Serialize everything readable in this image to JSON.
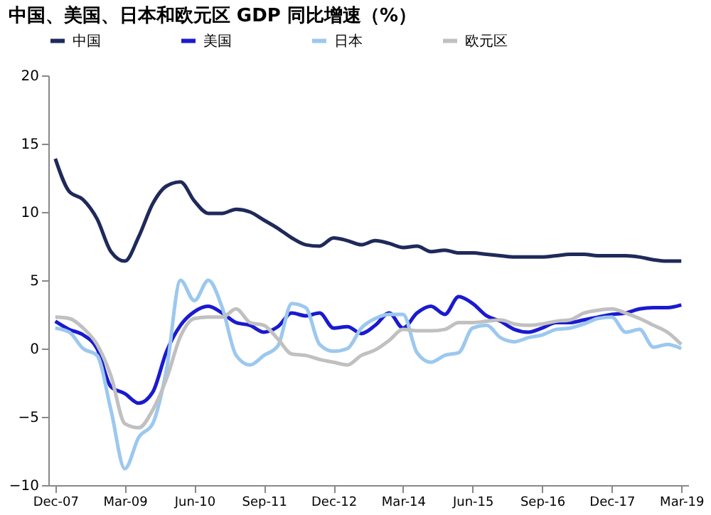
{
  "chart_data": {
    "type": "line",
    "title": "中国、美国、日本和欧元区 GDP 同比增速（%）",
    "categories": [
      "Dec-07",
      null,
      null,
      null,
      null,
      "Mar-09",
      null,
      null,
      null,
      null,
      "Jun-10",
      null,
      null,
      null,
      null,
      "Sep-11",
      null,
      null,
      null,
      null,
      "Dec-12",
      null,
      null,
      null,
      null,
      "Mar-14",
      null,
      null,
      null,
      null,
      "Jun-15",
      null,
      null,
      null,
      null,
      "Sep-16",
      null,
      null,
      null,
      null,
      "Dec-17",
      null,
      null,
      null,
      null,
      "Mar-19"
    ],
    "series": [
      {
        "name": "中国",
        "color": "#1f2a5a",
        "values": [
          13.9,
          11.5,
          10.9,
          9.5,
          7.1,
          6.4,
          8.2,
          10.6,
          11.9,
          12.2,
          10.8,
          9.9,
          9.9,
          10.2,
          10.0,
          9.4,
          8.8,
          8.1,
          7.6,
          7.5,
          8.1,
          7.9,
          7.6,
          7.9,
          7.7,
          7.4,
          7.5,
          7.1,
          7.2,
          7.0,
          7.0,
          6.9,
          6.8,
          6.7,
          6.7,
          6.7,
          6.8,
          6.9,
          6.9,
          6.8,
          6.8,
          6.8,
          6.7,
          6.5,
          6.4,
          6.4
        ]
      },
      {
        "name": "美国",
        "color": "#1a1ad0",
        "values": [
          2.0,
          1.4,
          1.0,
          0.0,
          -2.8,
          -3.3,
          -4.0,
          -3.2,
          -0.2,
          1.7,
          2.7,
          3.1,
          2.6,
          1.9,
          1.7,
          1.2,
          1.6,
          2.6,
          2.4,
          2.6,
          1.5,
          1.6,
          1.1,
          1.7,
          2.6,
          1.5,
          2.6,
          3.1,
          2.5,
          3.8,
          3.3,
          2.4,
          2.0,
          1.4,
          1.2,
          1.5,
          1.9,
          1.9,
          2.1,
          2.3,
          2.5,
          2.6,
          2.9,
          3.0,
          3.0,
          3.2
        ]
      },
      {
        "name": "日本",
        "color": "#9cc8ee",
        "values": [
          1.5,
          1.2,
          0.0,
          -0.5,
          -4.5,
          -8.8,
          -6.5,
          -5.5,
          -1.5,
          5.0,
          3.5,
          5.0,
          3.0,
          -0.5,
          -1.2,
          -0.5,
          0.2,
          3.3,
          3.0,
          0.3,
          -0.2,
          0.0,
          1.5,
          2.2,
          2.5,
          2.5,
          -0.3,
          -1.0,
          -0.5,
          -0.3,
          1.5,
          1.7,
          0.8,
          0.5,
          0.8,
          1.0,
          1.4,
          1.5,
          1.8,
          2.2,
          2.3,
          1.2,
          1.4,
          0.1,
          0.3,
          0.0
        ]
      },
      {
        "name": "欧元区",
        "color": "#c0c0c0",
        "values": [
          2.3,
          2.2,
          1.5,
          0.3,
          -2.0,
          -5.5,
          -5.8,
          -4.5,
          -2.2,
          0.9,
          2.2,
          2.3,
          2.3,
          2.9,
          1.9,
          1.7,
          0.7,
          -0.4,
          -0.5,
          -0.8,
          -1.0,
          -1.2,
          -0.5,
          -0.1,
          0.6,
          1.4,
          1.3,
          1.3,
          1.4,
          1.9,
          1.9,
          2.0,
          2.1,
          1.8,
          1.7,
          1.8,
          2.0,
          2.1,
          2.6,
          2.8,
          2.9,
          2.6,
          2.2,
          1.7,
          1.2,
          0.3
        ]
      }
    ],
    "ylim": [
      -10,
      20
    ],
    "yticks": [
      -10,
      -5,
      0,
      5,
      10,
      15,
      20
    ],
    "grid": false,
    "legend": "top"
  }
}
